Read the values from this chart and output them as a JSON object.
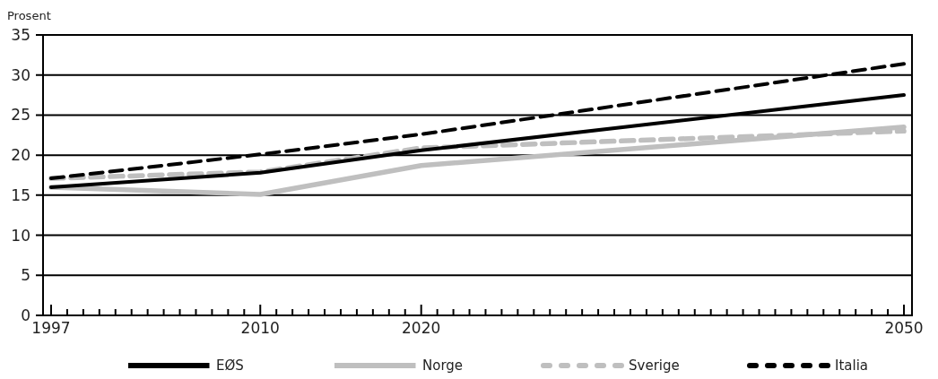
{
  "chart_data": {
    "type": "line",
    "ylabel": "Prosent",
    "x": [
      1997,
      2010,
      2020,
      2050
    ],
    "series": [
      {
        "name": "EØS",
        "color": "#000000",
        "values": [
          16,
          17.8,
          20.6,
          27.5
        ],
        "line_style": "solid"
      },
      {
        "name": "Norge",
        "color": "#bfbfbf",
        "values": [
          16,
          15.1,
          18.7,
          23.5
        ],
        "line_style": "solid"
      },
      {
        "name": "Sverige",
        "color": "#bfbfbf",
        "values": [
          17.1,
          17.9,
          20.9,
          23
        ],
        "line_style": "dashed"
      },
      {
        "name": "Italia",
        "color": "#000000",
        "values": [
          17.1,
          20.1,
          22.6,
          31.4
        ],
        "line_style": "dashed"
      }
    ],
    "xlim": [
      1996.5,
      2050.5
    ],
    "xticks": [
      1997,
      {
        "value": 1998,
        "label": null
      },
      {
        "value": 1999,
        "label": null
      },
      {
        "value": 2000,
        "label": null
      },
      {
        "value": 2001,
        "label": null
      },
      {
        "value": 2002,
        "label": null
      },
      {
        "value": 2003,
        "label": null
      },
      {
        "value": 2004,
        "label": null
      },
      {
        "value": 2005,
        "label": null
      },
      {
        "value": 2006,
        "label": null
      },
      {
        "value": 2007,
        "label": null
      },
      {
        "value": 2008,
        "label": null
      },
      {
        "value": 2009,
        "label": null
      },
      2010,
      {
        "value": 2011,
        "label": null
      },
      {
        "value": 2012,
        "label": null
      },
      {
        "value": 2013,
        "label": null
      },
      {
        "value": 2014,
        "label": null
      },
      {
        "value": 2015,
        "label": null
      },
      {
        "value": 2016,
        "label": null
      },
      {
        "value": 2017,
        "label": null
      },
      {
        "value": 2018,
        "label": null
      },
      {
        "value": 2019,
        "label": null
      },
      2020,
      {
        "value": 2021,
        "label": null
      },
      {
        "value": 2022,
        "label": null
      },
      {
        "value": 2023,
        "label": null
      },
      {
        "value": 2024,
        "label": null
      },
      {
        "value": 2025,
        "label": null
      },
      {
        "value": 2026,
        "label": null
      },
      {
        "value": 2027,
        "label": null
      },
      {
        "value": 2028,
        "label": null
      },
      {
        "value": 2029,
        "label": null
      },
      {
        "value": 2030,
        "label": null
      },
      {
        "value": 2031,
        "label": null
      },
      {
        "value": 2032,
        "label": null
      },
      {
        "value": 2033,
        "label": null
      },
      {
        "value": 2034,
        "label": null
      },
      {
        "value": 2035,
        "label": null
      },
      {
        "value": 2036,
        "label": null
      },
      {
        "value": 2037,
        "label": null
      },
      {
        "value": 2038,
        "label": null
      },
      {
        "value": 2039,
        "label": null
      },
      {
        "value": 2040,
        "label": null
      },
      {
        "value": 2041,
        "label": null
      },
      {
        "value": 2042,
        "label": null
      },
      {
        "value": 2043,
        "label": null
      },
      {
        "value": 2044,
        "label": null
      },
      {
        "value": 2045,
        "label": null
      },
      {
        "value": 2046,
        "label": null
      },
      {
        "value": 2047,
        "label": null
      },
      {
        "value": 2048,
        "label": null
      },
      {
        "value": 2049,
        "label": null
      },
      2050
    ],
    "ylim": [
      0,
      35
    ],
    "yticks": [
      0,
      5,
      10,
      15,
      20,
      25,
      30,
      35
    ],
    "grid": "y",
    "legend": "bottom",
    "marker": "none"
  }
}
